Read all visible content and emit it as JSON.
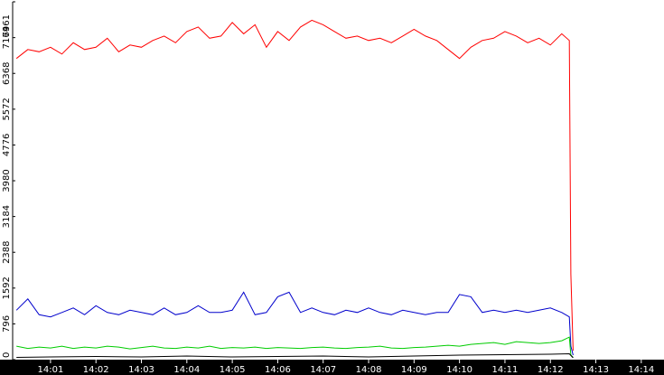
{
  "chart_data": {
    "type": "line",
    "title": "",
    "xlabel": "",
    "ylabel": "",
    "y_ticks": [
      "0",
      "796",
      "1592",
      "2388",
      "3184",
      "3980",
      "4776",
      "5572",
      "6368",
      "7164",
      "7961"
    ],
    "x_ticks": [
      "14:01",
      "14:02",
      "14:03",
      "14:04",
      "14:05",
      "14:06",
      "14:07",
      "14:08",
      "14:09",
      "14:10",
      "14:11",
      "14:12",
      "14:13",
      "14:14"
    ],
    "ylim": [
      0,
      7961
    ],
    "x_range": [
      "14:00:10",
      "14:14:30"
    ],
    "grid": false,
    "legend": "none",
    "axis_background": "#000000",
    "axis_text_color": "#ffffff",
    "series": [
      {
        "color": "#ff0000",
        "x": [
          "14:00:15",
          "14:00:30",
          "14:00:45",
          "14:01:00",
          "14:01:15",
          "14:01:30",
          "14:01:45",
          "14:02:00",
          "14:02:15",
          "14:02:30",
          "14:02:45",
          "14:03:00",
          "14:03:15",
          "14:03:30",
          "14:03:45",
          "14:04:00",
          "14:04:15",
          "14:04:30",
          "14:04:45",
          "14:05:00",
          "14:05:15",
          "14:05:30",
          "14:05:45",
          "14:06:00",
          "14:06:15",
          "14:06:30",
          "14:06:45",
          "14:07:00",
          "14:07:15",
          "14:07:30",
          "14:07:45",
          "14:08:00",
          "14:08:15",
          "14:08:30",
          "14:08:45",
          "14:09:00",
          "14:09:15",
          "14:09:30",
          "14:09:45",
          "14:10:00",
          "14:10:15",
          "14:10:30",
          "14:10:45",
          "14:11:00",
          "14:11:15",
          "14:11:30",
          "14:11:45",
          "14:12:00",
          "14:12:15",
          "14:12:25",
          "14:12:27",
          "14:12:30"
        ],
        "values": [
          6700,
          6900,
          6850,
          6950,
          6800,
          7050,
          6900,
          6950,
          7150,
          6850,
          7000,
          6950,
          7100,
          7200,
          7050,
          7300,
          7400,
          7150,
          7200,
          7500,
          7250,
          7450,
          6950,
          7300,
          7100,
          7400,
          7550,
          7450,
          7300,
          7150,
          7200,
          7100,
          7150,
          7050,
          7200,
          7350,
          7200,
          7100,
          6900,
          6700,
          6950,
          7100,
          7150,
          7300,
          7200,
          7050,
          7150,
          7000,
          7250,
          7100,
          1900,
          200
        ]
      },
      {
        "color": "#0000cc",
        "x": [
          "14:00:15",
          "14:00:30",
          "14:00:45",
          "14:01:00",
          "14:01:15",
          "14:01:30",
          "14:01:45",
          "14:02:00",
          "14:02:15",
          "14:02:30",
          "14:02:45",
          "14:03:00",
          "14:03:15",
          "14:03:30",
          "14:03:45",
          "14:04:00",
          "14:04:15",
          "14:04:30",
          "14:04:45",
          "14:05:00",
          "14:05:15",
          "14:05:30",
          "14:05:45",
          "14:06:00",
          "14:06:15",
          "14:06:30",
          "14:06:45",
          "14:07:00",
          "14:07:15",
          "14:07:30",
          "14:07:45",
          "14:08:00",
          "14:08:15",
          "14:08:30",
          "14:08:45",
          "14:09:00",
          "14:09:15",
          "14:09:30",
          "14:09:45",
          "14:10:00",
          "14:10:15",
          "14:10:30",
          "14:10:45",
          "14:11:00",
          "14:11:15",
          "14:11:30",
          "14:11:45",
          "14:12:00",
          "14:12:15",
          "14:12:25",
          "14:12:27",
          "14:12:30"
        ],
        "values": [
          1100,
          1350,
          1000,
          950,
          1050,
          1150,
          1000,
          1200,
          1050,
          1000,
          1100,
          1050,
          1000,
          1150,
          1000,
          1050,
          1200,
          1050,
          1050,
          1100,
          1500,
          1000,
          1050,
          1400,
          1500,
          1050,
          1150,
          1050,
          1000,
          1100,
          1050,
          1150,
          1050,
          1000,
          1100,
          1050,
          1000,
          1050,
          1050,
          1450,
          1400,
          1050,
          1100,
          1050,
          1100,
          1050,
          1100,
          1150,
          1050,
          950,
          300,
          100
        ]
      },
      {
        "color": "#00cc00",
        "x": [
          "14:00:15",
          "14:00:30",
          "14:00:45",
          "14:01:00",
          "14:01:15",
          "14:01:30",
          "14:01:45",
          "14:02:00",
          "14:02:15",
          "14:02:30",
          "14:02:45",
          "14:03:00",
          "14:03:15",
          "14:03:30",
          "14:03:45",
          "14:04:00",
          "14:04:15",
          "14:04:30",
          "14:04:45",
          "14:05:00",
          "14:05:15",
          "14:05:30",
          "14:05:45",
          "14:06:00",
          "14:06:15",
          "14:06:30",
          "14:06:45",
          "14:07:00",
          "14:07:15",
          "14:07:30",
          "14:07:45",
          "14:08:00",
          "14:08:15",
          "14:08:30",
          "14:08:45",
          "14:09:00",
          "14:09:15",
          "14:09:30",
          "14:09:45",
          "14:10:00",
          "14:10:15",
          "14:10:30",
          "14:10:45",
          "14:11:00",
          "14:11:15",
          "14:11:30",
          "14:11:45",
          "14:12:00",
          "14:12:15",
          "14:12:25",
          "14:12:27",
          "14:12:30"
        ],
        "values": [
          300,
          250,
          280,
          260,
          300,
          250,
          280,
          260,
          300,
          280,
          240,
          270,
          300,
          260,
          250,
          280,
          260,
          300,
          250,
          270,
          260,
          280,
          250,
          270,
          260,
          250,
          270,
          280,
          260,
          250,
          270,
          280,
          300,
          260,
          250,
          270,
          280,
          300,
          320,
          300,
          340,
          360,
          380,
          340,
          400,
          380,
          360,
          380,
          420,
          500,
          100,
          50
        ]
      },
      {
        "color": "#000000",
        "x": [
          "14:00:15",
          "14:01:00",
          "14:02:00",
          "14:03:00",
          "14:04:00",
          "14:05:00",
          "14:06:00",
          "14:07:00",
          "14:08:00",
          "14:09:00",
          "14:10:00",
          "14:11:00",
          "14:12:00",
          "14:12:25",
          "14:12:30"
        ],
        "values": [
          50,
          60,
          70,
          60,
          80,
          60,
          70,
          80,
          60,
          80,
          100,
          110,
          120,
          130,
          40
        ]
      }
    ]
  }
}
